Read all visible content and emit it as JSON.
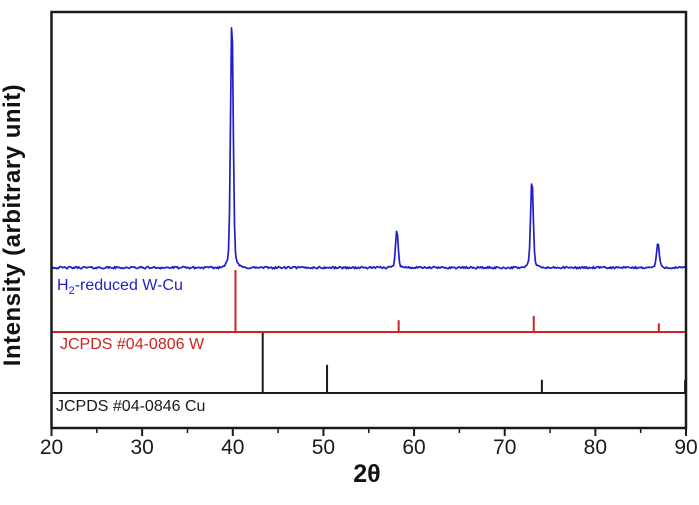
{
  "chart_data": {
    "type": "line",
    "subtype": "xrd-pattern-with-reference-sticks",
    "title": "",
    "xlabel": "2θ",
    "ylabel": "Intensity (arbitrary unit)",
    "xlim": [
      20,
      90
    ],
    "x_major_ticks": [
      20,
      30,
      40,
      50,
      60,
      70,
      80,
      90
    ],
    "x_minor_ticks": [
      25,
      35,
      45,
      55,
      65,
      75,
      85
    ],
    "y_axis": "arbitrary units, no ticks",
    "grid": false,
    "legend_position": "labels inside plot, one per pattern row",
    "frame_color": "#1a1a1a",
    "series": [
      {
        "name": "H2-reduced W-Cu",
        "label_parts": {
          "pre": "H",
          "sub": "2",
          "post": "-reduced W-Cu"
        },
        "display": "trace",
        "color": "#1f1fc8",
        "peaks": [
          {
            "two_theta": 39.9,
            "rel_intensity": 100
          },
          {
            "two_theta": 58.1,
            "rel_intensity": 15
          },
          {
            "two_theta": 73.0,
            "rel_intensity": 35
          },
          {
            "two_theta": 86.9,
            "rel_intensity": 10
          }
        ]
      },
      {
        "name": "JCPDS #04-0806 W",
        "display": "sticks",
        "color": "#cc2222",
        "peaks": [
          {
            "two_theta": 40.3,
            "rel_intensity": 100
          },
          {
            "two_theta": 58.3,
            "rel_intensity": 19
          },
          {
            "two_theta": 73.2,
            "rel_intensity": 26
          },
          {
            "two_theta": 87.0,
            "rel_intensity": 14
          }
        ]
      },
      {
        "name": "JCPDS #04-0846 Cu",
        "display": "sticks",
        "color": "#1a1a1a",
        "peaks": [
          {
            "two_theta": 43.3,
            "rel_intensity": 100
          },
          {
            "two_theta": 50.4,
            "rel_intensity": 47
          },
          {
            "two_theta": 74.1,
            "rel_intensity": 22
          },
          {
            "two_theta": 89.9,
            "rel_intensity": 22
          }
        ]
      }
    ]
  }
}
